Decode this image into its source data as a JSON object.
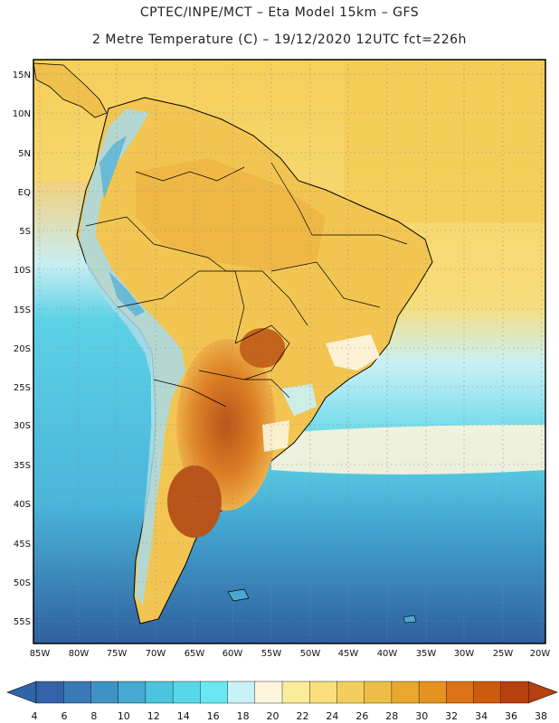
{
  "header": {
    "title_line1": "CPTEC/INPE/MCT –   Eta Model 15km – GFS",
    "title_line2": "2 Metre Temperature (C) – 19/12/2020 12UTC fct=226h"
  },
  "axes": {
    "lat_labels": [
      "15N",
      "10N",
      "5N",
      "EQ",
      "5S",
      "10S",
      "15S",
      "20S",
      "25S",
      "30S",
      "35S",
      "40S",
      "45S",
      "50S",
      "55S"
    ],
    "lon_labels": [
      "85W",
      "80W",
      "75W",
      "70W",
      "65W",
      "60W",
      "55W",
      "50W",
      "45W",
      "40W",
      "35W",
      "30W",
      "25W",
      "20W"
    ]
  },
  "colorbar": {
    "labels": [
      "4",
      "6",
      "8",
      "10",
      "12",
      "14",
      "16",
      "18",
      "20",
      "22",
      "24",
      "26",
      "28",
      "30",
      "32",
      "34",
      "36",
      "38"
    ],
    "low_color": "#2f64a8",
    "high_color": "#b8400e",
    "colors": [
      "#3563a9",
      "#3a78b8",
      "#3f92c5",
      "#45a9d2",
      "#4dc4df",
      "#57d8e8",
      "#6ae8f2",
      "#c8f2f7",
      "#fdf6dc",
      "#fbec9a",
      "#f8df7a",
      "#f2cf5d",
      "#ecbe45",
      "#e9a82c",
      "#e59221",
      "#de7216",
      "#cd5a0d",
      "#b8400e"
    ]
  },
  "colors": {
    "ocean_deep": "#2e5c9e",
    "ocean_mid": "#3f8fc4",
    "ocean_light": "#56cfe2",
    "land_base": "#f5c451",
    "land_hot": "#d9801e",
    "land_very_hot": "#b8531a",
    "andes_cool": "#a9dbe8"
  }
}
